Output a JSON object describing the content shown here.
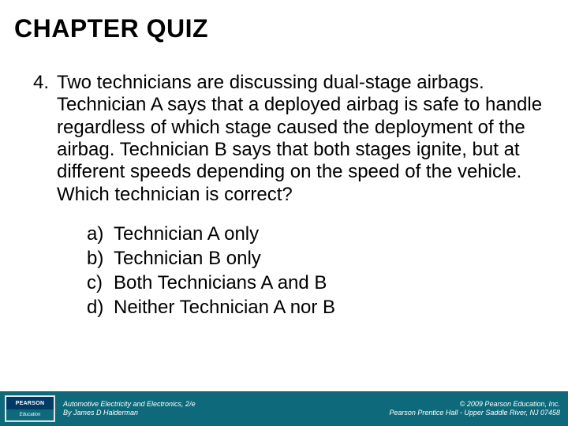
{
  "title": "CHAPTER QUIZ",
  "question": {
    "number": "4.",
    "text": "Two technicians are discussing dual-stage airbags. Technician A says that a deployed airbag is safe to handle regardless of which stage caused the deployment of the airbag. Technician B says that both stages ignite, but at different speeds depending on the speed of the vehicle. Which technician is correct?"
  },
  "options": [
    {
      "letter": "a)",
      "text": "Technician A only"
    },
    {
      "letter": "b)",
      "text": "Technician B only"
    },
    {
      "letter": "c)",
      "text": "Both Technicians A and B"
    },
    {
      "letter": "d)",
      "text": "Neither Technician A nor B"
    }
  ],
  "logo": {
    "top": "PEARSON",
    "bottom": "Education"
  },
  "footer": {
    "left_line1": "Automotive Electricity and Electronics, 2/e",
    "left_line2": "By James D Halderman",
    "right_line1": "© 2009 Pearson Education, Inc.",
    "right_line2": "Pearson Prentice Hall - Upper Saddle River, NJ 07458"
  },
  "colors": {
    "footer_bg": "#0e6a7a",
    "logo_top_bg": "#003a66",
    "text": "#000000",
    "footer_text": "#ffffff"
  },
  "typography": {
    "title_fontsize": 32,
    "body_fontsize": 24,
    "footer_fontsize": 9
  }
}
